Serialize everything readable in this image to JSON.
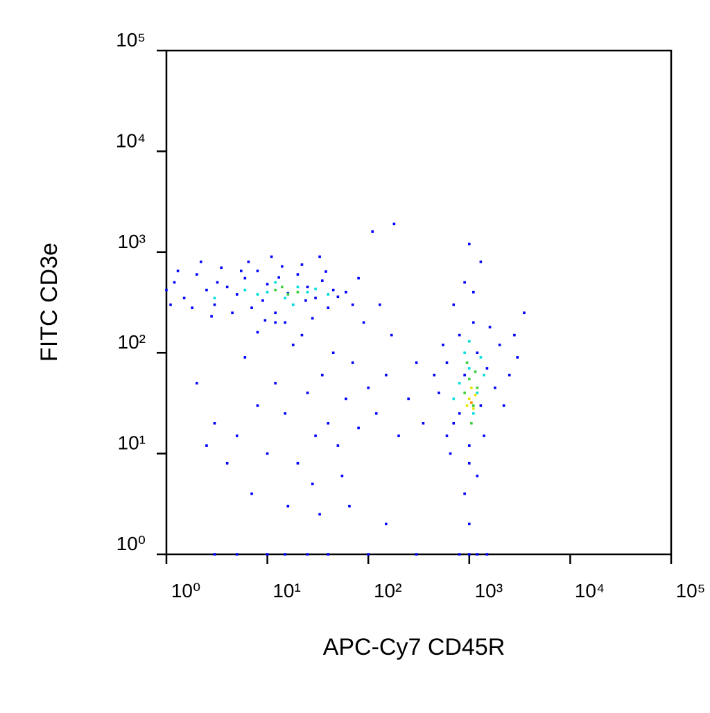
{
  "chart_data": {
    "type": "scatter",
    "x_label": "APC-Cy7 CD45R",
    "y_label": "FITC CD3e",
    "xscale": "log",
    "yscale": "log",
    "xlim": [
      1,
      100000
    ],
    "ylim": [
      1,
      100000
    ],
    "xticks": [
      {
        "value": 1,
        "label": "10⁰"
      },
      {
        "value": 10,
        "label": "10¹"
      },
      {
        "value": 100,
        "label": "10²"
      },
      {
        "value": 1000,
        "label": "10³"
      },
      {
        "value": 10000,
        "label": "10⁴"
      },
      {
        "value": 100000,
        "label": "10⁵"
      }
    ],
    "yticks": [
      {
        "value": 1,
        "label": "10⁰"
      },
      {
        "value": 10,
        "label": "10¹"
      },
      {
        "value": 100,
        "label": "10²"
      },
      {
        "value": 1000,
        "label": "10³"
      },
      {
        "value": 10000,
        "label": "10⁴"
      },
      {
        "value": 100000,
        "label": "10⁵"
      }
    ],
    "series": [
      {
        "color": "#0000ff",
        "x": [
          1.2,
          1.5,
          2,
          2.5,
          3,
          3.5,
          4,
          5,
          6,
          7,
          8,
          9,
          10,
          12,
          14,
          16,
          18,
          20,
          25,
          30,
          35,
          40,
          45,
          50,
          1,
          1.3,
          1.8,
          2.2,
          3.2,
          4.5,
          6.5,
          11,
          15,
          22,
          28,
          33,
          60,
          70,
          80,
          1.1,
          2.8,
          5.5,
          9.5,
          13,
          24,
          38,
          3,
          5,
          8,
          10,
          12,
          15,
          20,
          25,
          30,
          35,
          40,
          50,
          60,
          70,
          80,
          100,
          120,
          150,
          200,
          250,
          2,
          4,
          6,
          18,
          22,
          28,
          45,
          55,
          90,
          130,
          170,
          300,
          350,
          2.5,
          7,
          16,
          33,
          65,
          150,
          12,
          8,
          500,
          600,
          700,
          800,
          900,
          1000,
          1100,
          1200,
          1300,
          1500,
          1800,
          2000,
          2500,
          3000,
          3500,
          600,
          700,
          900,
          1000,
          1200,
          1400,
          800,
          1600,
          2200,
          450,
          550,
          650,
          1100,
          1300,
          900,
          1000,
          2800,
          3,
          5,
          10,
          15,
          25,
          40,
          100,
          300,
          800,
          1000,
          1200,
          1500,
          110,
          180,
          1000
        ],
        "y": [
          500,
          350,
          600,
          420,
          300,
          700,
          450,
          380,
          550,
          280,
          650,
          330,
          480,
          250,
          720,
          390,
          300,
          600,
          450,
          350,
          520,
          280,
          420,
          360,
          420,
          650,
          280,
          800,
          500,
          250,
          800,
          900,
          200,
          750,
          220,
          900,
          400,
          300,
          550,
          300,
          230,
          650,
          210,
          560,
          330,
          640,
          20,
          15,
          30,
          10,
          50,
          25,
          8,
          40,
          15,
          60,
          20,
          12,
          35,
          80,
          18,
          45,
          25,
          60,
          15,
          35,
          50,
          8,
          90,
          120,
          150,
          5,
          100,
          6,
          200,
          300,
          150,
          80,
          20,
          12,
          4,
          3,
          2.5,
          3,
          2,
          200,
          160,
          40,
          80,
          20,
          150,
          60,
          12,
          200,
          100,
          30,
          70,
          45,
          120,
          60,
          90,
          250,
          15,
          300,
          500,
          8,
          6,
          15,
          25,
          180,
          30,
          60,
          120,
          10,
          400,
          800,
          4,
          2,
          150,
          1,
          1,
          1,
          1,
          1,
          1,
          1,
          1,
          1,
          1,
          1,
          1,
          1600,
          1900,
          1200
        ]
      },
      {
        "color": "#00dede",
        "x": [
          10,
          15,
          20,
          8,
          25,
          12,
          18,
          30,
          6,
          800,
          1000,
          1200,
          900,
          1100,
          1400,
          700,
          1000,
          1300,
          3,
          40
        ],
        "y": [
          400,
          350,
          450,
          380,
          400,
          500,
          300,
          430,
          420,
          50,
          70,
          40,
          100,
          25,
          60,
          35,
          130,
          90,
          350,
          380
        ]
      },
      {
        "color": "#3cd03c",
        "x": [
          12,
          16,
          20,
          14,
          900,
          1000,
          1100,
          1200,
          1050,
          950,
          1150
        ],
        "y": [
          420,
          380,
          400,
          450,
          40,
          55,
          30,
          45,
          20,
          80,
          65
        ]
      },
      {
        "color": "#e6e600",
        "x": [
          1000,
          1100,
          1050,
          950,
          1150
        ],
        "y": [
          35,
          28,
          45,
          30,
          38
        ]
      },
      {
        "color": "#ff9000",
        "x": [
          1050
        ],
        "y": [
          32
        ]
      }
    ]
  }
}
